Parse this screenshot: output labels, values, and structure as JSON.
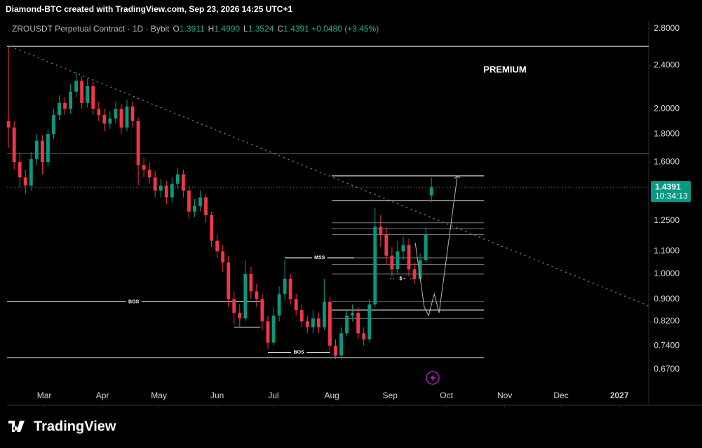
{
  "chart_data": {
    "type": "candlestick",
    "title": "Diamond-BTC created with TradingView.com, Sep 23, 2026 14:25 UTC+1",
    "symbol": "ZROUSDT Perpetual Contract · 1D · Bybit",
    "legend_values": [
      {
        "key": "O",
        "text": "1.3911"
      },
      {
        "key": "H",
        "text": "1.4990"
      },
      {
        "key": "L",
        "text": "1.3524"
      },
      {
        "key": "C",
        "text": "1.4391"
      }
    ],
    "change": "+0.0480 (+3.45%)",
    "watermark": "PREMIUM",
    "countdown": "10:34:13",
    "brand": "TradingView",
    "up_color": "#089981",
    "down_color": "#f23645",
    "log_scale": true,
    "xlim": [
      -19.8,
      321.6
    ],
    "ylim": [
      0.5766,
      2.892
    ],
    "xticks": [
      {
        "value": 0,
        "label": "Mar"
      },
      {
        "value": 31,
        "label": "Apr"
      },
      {
        "value": 61,
        "label": "May"
      },
      {
        "value": 92,
        "label": "Jun"
      },
      {
        "value": 122,
        "label": "Jul"
      },
      {
        "value": 153,
        "label": "Aug"
      },
      {
        "value": 184,
        "label": "Sep"
      },
      {
        "value": 214,
        "label": "Oct"
      },
      {
        "value": 245,
        "label": "Nov"
      },
      {
        "value": 275,
        "label": "Dec"
      },
      {
        "value": 306,
        "label": "2027"
      }
    ],
    "yticks": [
      {
        "value": 2.8,
        "label": "2.8000"
      },
      {
        "value": 2.4,
        "label": "2.4000"
      },
      {
        "value": 2.0,
        "label": "2.0000"
      },
      {
        "value": 1.8,
        "label": "1.8000"
      },
      {
        "value": 1.6,
        "label": "1.6000"
      },
      {
        "value": 1.25,
        "label": "1.2500"
      },
      {
        "value": 1.1,
        "label": "1.1000"
      },
      {
        "value": 1.0,
        "label": "1.0000"
      },
      {
        "value": 0.9,
        "label": "0.9000"
      },
      {
        "value": 0.82,
        "label": "0.8200"
      },
      {
        "value": 0.74,
        "label": "0.7400"
      },
      {
        "value": 0.67,
        "label": "0.6700"
      }
    ],
    "x": [
      -19,
      -16,
      -13,
      -10,
      -7,
      -4,
      -1,
      2,
      5,
      8,
      11,
      14,
      17,
      20,
      23,
      26,
      29,
      32,
      35,
      38,
      41,
      44,
      47,
      50,
      53,
      56,
      59,
      62,
      65,
      68,
      71,
      74,
      77,
      80,
      83,
      86,
      89,
      92,
      95,
      98,
      101,
      104,
      107,
      110,
      113,
      116,
      119,
      122,
      125,
      128,
      131,
      134,
      137,
      140,
      143,
      146,
      149,
      152,
      155,
      158,
      161,
      164,
      167,
      170,
      173,
      176,
      179,
      182,
      185,
      188,
      191,
      194,
      197,
      200,
      203,
      206
    ],
    "open": [
      1.9,
      1.85,
      1.6,
      1.5,
      1.45,
      1.62,
      1.75,
      1.6,
      1.8,
      1.95,
      2.05,
      2.0,
      2.15,
      2.25,
      2.05,
      2.2,
      2.0,
      1.95,
      1.88,
      1.92,
      2.0,
      1.85,
      2.02,
      1.9,
      1.58,
      1.55,
      1.5,
      1.42,
      1.45,
      1.38,
      1.46,
      1.52,
      1.42,
      1.3,
      1.33,
      1.38,
      1.28,
      1.15,
      1.1,
      1.05,
      0.9,
      0.85,
      0.83,
      1.0,
      0.93,
      0.9,
      0.82,
      0.75,
      0.84,
      0.92,
      0.98,
      0.9,
      0.86,
      0.82,
      0.8,
      0.83,
      0.8,
      0.89,
      0.74,
      0.71,
      0.78,
      0.84,
      0.85,
      0.78,
      0.76,
      0.88,
      1.22,
      1.18,
      1.08,
      1.02,
      1.1,
      1.13,
      1.02,
      0.98,
      1.06,
      1.3911
    ],
    "high": [
      2.6,
      1.9,
      1.66,
      1.55,
      1.67,
      1.8,
      1.79,
      1.84,
      2.0,
      2.12,
      2.1,
      2.22,
      2.33,
      2.29,
      2.27,
      2.24,
      2.06,
      2.0,
      1.98,
      2.06,
      2.04,
      2.08,
      2.06,
      1.93,
      1.63,
      1.6,
      1.54,
      1.49,
      1.48,
      1.5,
      1.56,
      1.55,
      1.45,
      1.37,
      1.42,
      1.4,
      1.3,
      1.18,
      1.13,
      1.08,
      0.93,
      0.88,
      1.06,
      1.03,
      0.96,
      0.92,
      0.84,
      0.87,
      0.95,
      1.06,
      1.0,
      0.92,
      0.88,
      0.84,
      0.86,
      0.85,
      0.98,
      0.91,
      0.76,
      0.8,
      0.86,
      0.88,
      0.87,
      0.8,
      0.9,
      1.32,
      1.28,
      1.22,
      1.12,
      1.15,
      1.17,
      1.16,
      1.05,
      1.09,
      1.22,
      1.499
    ],
    "low": [
      1.7,
      1.55,
      1.44,
      1.4,
      1.42,
      1.58,
      1.52,
      1.57,
      1.76,
      1.91,
      1.95,
      1.96,
      2.1,
      2.0,
      2.01,
      1.95,
      1.9,
      1.82,
      1.84,
      1.88,
      1.8,
      1.82,
      1.85,
      1.45,
      1.5,
      1.46,
      1.38,
      1.38,
      1.34,
      1.35,
      1.43,
      1.38,
      1.26,
      1.27,
      1.3,
      1.24,
      1.12,
      1.07,
      1.01,
      0.87,
      0.81,
      0.8,
      0.82,
      0.9,
      0.87,
      0.79,
      0.73,
      0.74,
      0.82,
      0.9,
      0.88,
      0.84,
      0.8,
      0.78,
      0.78,
      0.78,
      0.79,
      0.72,
      0.7,
      0.7,
      0.77,
      0.82,
      0.76,
      0.74,
      0.75,
      0.87,
      1.12,
      1.04,
      0.99,
      1.0,
      1.06,
      0.99,
      0.96,
      0.97,
      1.05,
      1.3524
    ],
    "close": [
      1.85,
      1.6,
      1.5,
      1.45,
      1.62,
      1.75,
      1.6,
      1.8,
      1.95,
      2.05,
      2.0,
      2.15,
      2.25,
      2.05,
      2.2,
      2.0,
      1.95,
      1.88,
      1.92,
      2.0,
      1.85,
      2.02,
      1.9,
      1.58,
      1.55,
      1.5,
      1.42,
      1.45,
      1.38,
      1.46,
      1.52,
      1.42,
      1.3,
      1.33,
      1.38,
      1.28,
      1.15,
      1.1,
      1.05,
      0.9,
      0.85,
      0.83,
      1.0,
      0.93,
      0.9,
      0.82,
      0.75,
      0.84,
      0.92,
      0.98,
      0.9,
      0.86,
      0.82,
      0.8,
      0.83,
      0.8,
      0.89,
      0.74,
      0.71,
      0.78,
      0.84,
      0.85,
      0.78,
      0.76,
      0.88,
      1.22,
      1.18,
      1.08,
      1.02,
      1.1,
      1.13,
      1.02,
      0.98,
      1.06,
      1.18,
      1.4391
    ],
    "levels": [
      {
        "value": 2.6,
        "x": [
          -19.8,
          321.6
        ],
        "color": "#ffffff"
      },
      {
        "value": 1.66,
        "x": [
          -19.8,
          321.6
        ],
        "color": "#5d606b"
      },
      {
        "value": 0.89,
        "x": [
          -19.8,
          115
        ],
        "color": "#ffffff",
        "label": "BOS"
      },
      {
        "value": 0.704,
        "x": [
          -19.8,
          234
        ],
        "color": "#ffffff"
      },
      {
        "value": 1.07,
        "x": [
          128,
          165
        ],
        "color": "#ffffff",
        "label": "MSS"
      },
      {
        "value": 0.72,
        "x": [
          119,
          152
        ],
        "color": "#ffffff",
        "label": "BOS"
      },
      {
        "value": 0.8,
        "x": [
          101,
          115
        ],
        "color": "#ffffff"
      },
      {
        "value": 0.98,
        "x": [
          184,
          197
        ],
        "color": "#9598a1",
        "label": "$ -"
      },
      {
        "value": 1.51,
        "x": [
          153,
          234
        ],
        "color": "#ffffff"
      },
      {
        "value": 1.36,
        "x": [
          153,
          234
        ],
        "color": "#ffffff"
      },
      {
        "value": 1.24,
        "x": [
          153,
          234
        ],
        "color": "#787b86"
      },
      {
        "value": 1.21,
        "x": [
          153,
          234
        ],
        "color": "#787b86"
      },
      {
        "value": 1.18,
        "x": [
          153,
          234
        ],
        "color": "#787b86"
      },
      {
        "value": 1.07,
        "x": [
          165,
          234
        ],
        "color": "#787b86"
      },
      {
        "value": 1.04,
        "x": [
          153,
          234
        ],
        "color": "#787b86"
      },
      {
        "value": 1.0,
        "x": [
          153,
          234
        ],
        "color": "#787b86"
      },
      {
        "value": 0.89,
        "x": [
          153,
          234
        ],
        "color": "#787b86"
      },
      {
        "value": 0.86,
        "x": [
          153,
          234
        ],
        "color": "#ffffff"
      },
      {
        "value": 0.83,
        "x": [
          153,
          234
        ],
        "color": "#787b86"
      }
    ],
    "trendline": {
      "x": [
        -18,
        321.6
      ],
      "y": [
        2.6,
        0.875
      ],
      "color": "#787b86"
    },
    "projection": {
      "x": [
        197.4,
        202.2,
        204.5,
        207.5,
        210.1,
        219.8
      ],
      "y": [
        1.14,
        0.87,
        0.84,
        0.92,
        0.85,
        1.51
      ],
      "color": "#b2b5be"
    }
  }
}
